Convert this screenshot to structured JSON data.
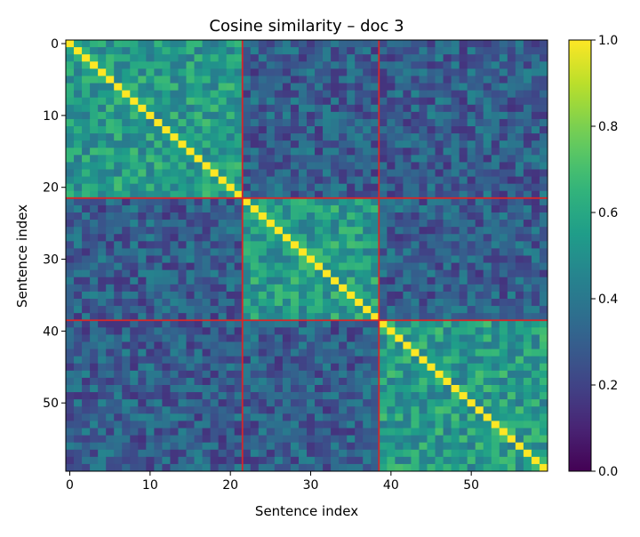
{
  "chart_data": {
    "type": "heatmap",
    "title": "Cosine similarity – doc 3",
    "xlabel": "Sentence index",
    "ylabel": "Sentence index",
    "n": 60,
    "x_ticks": [
      0,
      10,
      20,
      30,
      40,
      50
    ],
    "y_ticks": [
      0,
      10,
      20,
      30,
      40,
      50
    ],
    "colormap": "viridis",
    "colorbar": {
      "range": [
        0.0,
        1.0
      ],
      "ticks": [
        "0.0",
        "0.2",
        "0.4",
        "0.6",
        "0.8",
        "1.0"
      ]
    },
    "segment_boundaries": [
      21.5,
      38.5
    ],
    "boundary_color": "#d62728",
    "diagonal_value": 1.0,
    "mean_within_segment": 0.55,
    "mean_between_segments": 0.3,
    "grid": false
  }
}
